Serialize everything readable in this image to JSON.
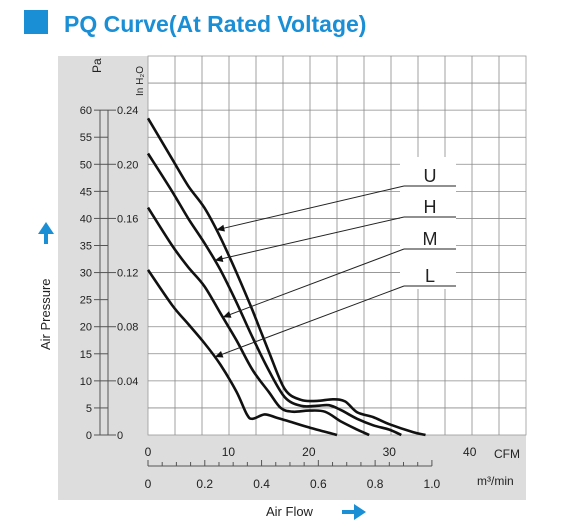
{
  "header": {
    "title": "PQ Curve(At Rated Voltage)",
    "accent_color": "#1a8fd6"
  },
  "chart_data": {
    "type": "line",
    "title": "PQ Curve(At Rated Voltage)",
    "xlabel": "Air Flow",
    "ylabel": "Air Pressure",
    "x_units": [
      "CFM",
      "m³/min"
    ],
    "y_units": [
      "Pa",
      "In H₂O"
    ],
    "x_cfm_ticks": [
      "0",
      "10",
      "20",
      "30",
      "40"
    ],
    "x_m3min_ticks": [
      "0",
      "0.2",
      "0.4",
      "0.6",
      "0.8",
      "1.0"
    ],
    "y_pa_ticks": [
      "0",
      "5",
      "10",
      "15",
      "20",
      "25",
      "30",
      "35",
      "40",
      "45",
      "50",
      "55",
      "60"
    ],
    "y_inh2o_ticks": [
      "0",
      "0.04",
      "0.08",
      "0.12",
      "0.16",
      "0.20",
      "0.24"
    ],
    "xlim_cfm": [
      0,
      47
    ],
    "ylim_pa": [
      0,
      70
    ],
    "grid": true,
    "legend_labels": [
      "U",
      "H",
      "M",
      "L"
    ],
    "series": [
      {
        "name": "U",
        "points": [
          [
            0,
            58.5
          ],
          [
            3,
            51
          ],
          [
            5,
            46
          ],
          [
            7,
            42
          ],
          [
            9,
            36.5
          ],
          [
            11,
            30
          ],
          [
            13,
            23
          ],
          [
            15,
            15.5
          ],
          [
            17,
            8.5
          ],
          [
            19,
            6.5
          ],
          [
            21,
            6.3
          ],
          [
            23,
            6.6
          ],
          [
            24.5,
            6.2
          ],
          [
            26,
            4.2
          ],
          [
            28,
            3.3
          ],
          [
            30,
            2
          ],
          [
            33,
            0.5
          ],
          [
            34.5,
            0
          ]
        ]
      },
      {
        "name": "H",
        "points": [
          [
            0,
            52
          ],
          [
            3,
            45
          ],
          [
            5,
            40
          ],
          [
            7,
            35.5
          ],
          [
            9,
            30.5
          ],
          [
            11,
            24.5
          ],
          [
            13,
            18
          ],
          [
            15,
            12
          ],
          [
            17,
            7
          ],
          [
            19,
            5.4
          ],
          [
            21,
            5.4
          ],
          [
            22.5,
            5.5
          ],
          [
            24,
            4.6
          ],
          [
            26,
            3
          ],
          [
            28,
            1.8
          ],
          [
            30,
            1
          ],
          [
            31.5,
            0
          ]
        ]
      },
      {
        "name": "M",
        "points": [
          [
            0,
            42
          ],
          [
            3,
            35
          ],
          [
            5,
            31
          ],
          [
            7,
            27.5
          ],
          [
            9,
            22.5
          ],
          [
            11,
            17.5
          ],
          [
            13,
            12
          ],
          [
            15,
            8
          ],
          [
            16.5,
            5
          ],
          [
            18,
            4.3
          ],
          [
            20,
            4.5
          ],
          [
            22,
            4.3
          ],
          [
            24,
            2.5
          ],
          [
            26,
            1
          ],
          [
            27.5,
            0
          ]
        ]
      },
      {
        "name": "L",
        "points": [
          [
            0,
            30.5
          ],
          [
            3,
            24
          ],
          [
            5,
            20.5
          ],
          [
            7,
            17
          ],
          [
            9,
            13
          ],
          [
            11,
            8
          ],
          [
            12.3,
            3.8
          ],
          [
            13,
            3
          ],
          [
            14.5,
            3.8
          ],
          [
            16,
            3.2
          ],
          [
            18,
            2.3
          ],
          [
            20,
            1.4
          ],
          [
            22,
            0.6
          ],
          [
            23.5,
            0
          ]
        ]
      }
    ]
  }
}
